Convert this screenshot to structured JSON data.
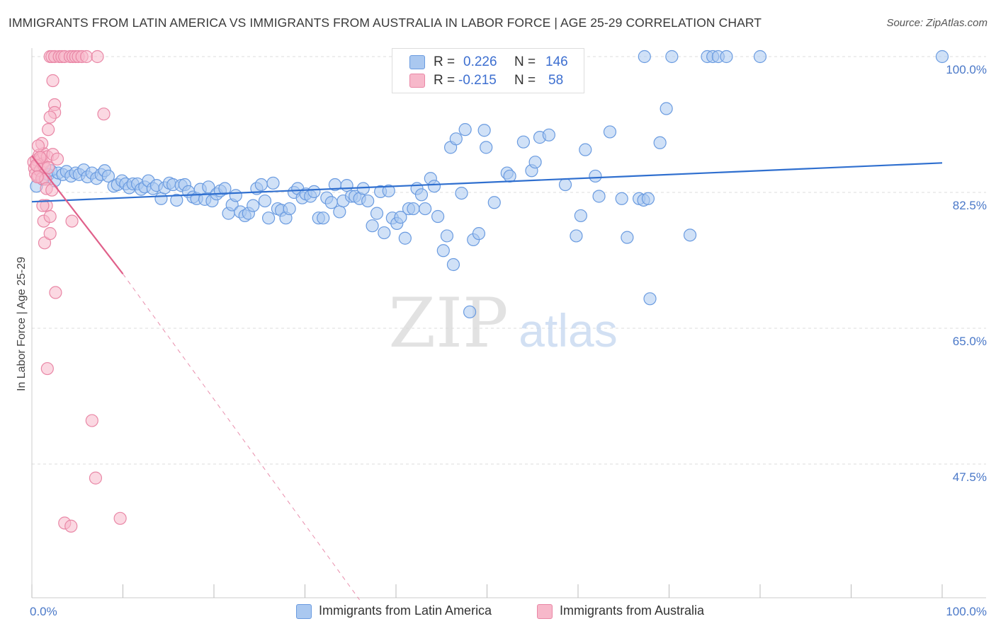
{
  "header": {
    "title": "IMMIGRANTS FROM LATIN AMERICA VS IMMIGRANTS FROM AUSTRALIA IN LABOR FORCE | AGE 25-29 CORRELATION CHART",
    "source": "Source: ZipAtlas.com"
  },
  "watermark": {
    "zip": "ZIP",
    "atlas": "atlas"
  },
  "legend": {
    "rows": [
      {
        "r_label": "R =",
        "r_value": "0.226",
        "n_label": "N =",
        "n_value": "146"
      },
      {
        "r_label": "R =",
        "r_value": "-0.215",
        "n_label": "N =",
        "n_value": "58"
      }
    ]
  },
  "colors": {
    "blue_fill": "#aac8f0",
    "blue_stroke": "#6a9be0",
    "blue_line": "#2f6fcf",
    "pink_fill": "#f7b8ca",
    "pink_stroke": "#e987a6",
    "pink_line": "#e0608a",
    "tick_text": "#4a78c8",
    "grid": "#dddddd"
  },
  "chart_data": {
    "type": "scatter",
    "title": "IMMIGRANTS FROM LATIN AMERICA VS IMMIGRANTS FROM AUSTRALIA IN LABOR FORCE | AGE 25-29 CORRELATION CHART",
    "xlabel": "",
    "ylabel": "In Labor Force | Age 25-29",
    "xlim": [
      0,
      100
    ],
    "ylim": [
      30,
      101.5
    ],
    "x_tick_labels": [
      "0.0%",
      "100.0%"
    ],
    "y_ticks": [
      {
        "value": 100.0,
        "label": "100.0%"
      },
      {
        "value": 82.5,
        "label": "82.5%"
      },
      {
        "value": 65.0,
        "label": "65.0%"
      },
      {
        "value": 47.5,
        "label": "47.5%"
      }
    ],
    "grid": true,
    "legend_position": "bottom",
    "series": [
      {
        "name": "Immigrants from Latin America",
        "R": 0.226,
        "N": 146,
        "trend": {
          "x0": 0,
          "y0": 81.3,
          "x1": 100,
          "y1": 86.3
        },
        "points": [
          [
            0.5,
            83.3
          ],
          [
            1.2,
            84.2
          ],
          [
            1.8,
            84.8
          ],
          [
            2.1,
            85.3
          ],
          [
            2.5,
            84.0
          ],
          [
            2.9,
            85.0
          ],
          [
            3.4,
            84.8
          ],
          [
            3.8,
            85.2
          ],
          [
            4.3,
            84.6
          ],
          [
            4.8,
            85.0
          ],
          [
            5.2,
            84.8
          ],
          [
            5.7,
            85.4
          ],
          [
            6.1,
            84.5
          ],
          [
            6.6,
            85.0
          ],
          [
            7.1,
            84.3
          ],
          [
            7.6,
            84.8
          ],
          [
            8.0,
            85.3
          ],
          [
            8.4,
            84.6
          ],
          [
            9.0,
            83.3
          ],
          [
            9.4,
            83.5
          ],
          [
            9.9,
            84.0
          ],
          [
            10.3,
            83.6
          ],
          [
            10.7,
            83.1
          ],
          [
            11.1,
            83.6
          ],
          [
            11.6,
            83.6
          ],
          [
            12.0,
            82.9
          ],
          [
            12.4,
            83.2
          ],
          [
            12.8,
            84.0
          ],
          [
            13.3,
            83.0
          ],
          [
            13.7,
            83.4
          ],
          [
            14.2,
            81.7
          ],
          [
            14.6,
            83.1
          ],
          [
            15.1,
            83.7
          ],
          [
            15.5,
            83.5
          ],
          [
            15.9,
            81.5
          ],
          [
            16.4,
            83.4
          ],
          [
            16.8,
            83.5
          ],
          [
            17.2,
            82.6
          ],
          [
            17.7,
            81.9
          ],
          [
            18.1,
            81.7
          ],
          [
            18.5,
            82.9
          ],
          [
            19.0,
            81.6
          ],
          [
            19.4,
            83.2
          ],
          [
            19.8,
            81.4
          ],
          [
            20.3,
            82.3
          ],
          [
            20.7,
            82.7
          ],
          [
            21.2,
            83.0
          ],
          [
            21.6,
            79.8
          ],
          [
            22.0,
            80.9
          ],
          [
            22.4,
            82.1
          ],
          [
            22.9,
            80.0
          ],
          [
            23.4,
            79.5
          ],
          [
            23.8,
            79.8
          ],
          [
            24.3,
            80.8
          ],
          [
            24.7,
            83.0
          ],
          [
            25.2,
            83.5
          ],
          [
            25.6,
            81.4
          ],
          [
            26.0,
            79.2
          ],
          [
            26.5,
            83.7
          ],
          [
            27.0,
            80.4
          ],
          [
            27.4,
            80.2
          ],
          [
            27.9,
            79.2
          ],
          [
            28.3,
            80.4
          ],
          [
            28.8,
            82.5
          ],
          [
            29.2,
            83.0
          ],
          [
            29.7,
            81.8
          ],
          [
            30.1,
            82.3
          ],
          [
            30.6,
            82.0
          ],
          [
            31.0,
            82.6
          ],
          [
            31.5,
            79.2
          ],
          [
            32.0,
            79.2
          ],
          [
            32.4,
            81.8
          ],
          [
            32.9,
            81.2
          ],
          [
            33.3,
            83.5
          ],
          [
            33.8,
            80.0
          ],
          [
            34.2,
            81.4
          ],
          [
            34.6,
            83.4
          ],
          [
            35.1,
            82.0
          ],
          [
            35.5,
            82.0
          ],
          [
            36.0,
            81.7
          ],
          [
            36.4,
            83.0
          ],
          [
            36.9,
            81.4
          ],
          [
            37.4,
            78.2
          ],
          [
            37.9,
            79.8
          ],
          [
            38.3,
            82.6
          ],
          [
            38.7,
            77.3
          ],
          [
            39.2,
            82.7
          ],
          [
            39.6,
            79.2
          ],
          [
            40.1,
            78.5
          ],
          [
            40.5,
            79.3
          ],
          [
            41.0,
            76.6
          ],
          [
            41.4,
            80.4
          ],
          [
            41.9,
            80.4
          ],
          [
            42.3,
            83.0
          ],
          [
            42.8,
            82.2
          ],
          [
            43.2,
            80.4
          ],
          [
            43.8,
            84.3
          ],
          [
            44.2,
            83.3
          ],
          [
            44.6,
            79.4
          ],
          [
            45.2,
            75.0
          ],
          [
            45.6,
            76.9
          ],
          [
            46.0,
            88.3
          ],
          [
            46.6,
            89.4
          ],
          [
            47.2,
            82.4
          ],
          [
            47.6,
            90.6
          ],
          [
            48.1,
            67.1
          ],
          [
            48.5,
            76.4
          ],
          [
            49.1,
            77.2
          ],
          [
            49.7,
            90.5
          ],
          [
            49.9,
            88.3
          ],
          [
            50.8,
            81.2
          ],
          [
            52.2,
            85.0
          ],
          [
            52.5,
            84.6
          ],
          [
            54.0,
            89.0
          ],
          [
            54.9,
            85.3
          ],
          [
            55.3,
            86.4
          ],
          [
            55.8,
            89.6
          ],
          [
            56.2,
            97.9
          ],
          [
            56.8,
            89.9
          ],
          [
            58.6,
            83.5
          ],
          [
            59.8,
            76.9
          ],
          [
            60.3,
            79.5
          ],
          [
            60.8,
            88.0
          ],
          [
            61.9,
            84.6
          ],
          [
            62.3,
            82.0
          ],
          [
            63.5,
            90.3
          ],
          [
            64.8,
            81.7
          ],
          [
            65.4,
            76.7
          ],
          [
            66.7,
            81.7
          ],
          [
            67.2,
            81.5
          ],
          [
            67.7,
            81.7
          ],
          [
            69.0,
            88.9
          ],
          [
            69.7,
            93.3
          ],
          [
            72.3,
            77.0
          ],
          [
            74.2,
            100.0
          ],
          [
            74.8,
            100.0
          ],
          [
            75.4,
            100.0
          ],
          [
            76.3,
            100.0
          ],
          [
            80.0,
            100.0
          ],
          [
            100.0,
            100.0
          ],
          [
            54.1,
            100.0
          ],
          [
            46.3,
            73.2
          ],
          [
            67.9,
            68.8
          ],
          [
            67.3,
            100.0
          ],
          [
            44.4,
            100.0
          ],
          [
            70.3,
            100.0
          ]
        ]
      },
      {
        "name": "Immigrants from Australia",
        "R": -0.215,
        "N": 58,
        "trend": {
          "x0": 0,
          "y0": 87.2,
          "x1": 10,
          "y1": 72.0,
          "dash_x1": 36,
          "dash_y1": 30.0
        },
        "points": [
          [
            0.2,
            86.4
          ],
          [
            0.3,
            85.6
          ],
          [
            0.4,
            84.9
          ],
          [
            0.5,
            86.7
          ],
          [
            0.6,
            85.9
          ],
          [
            0.7,
            84.6
          ],
          [
            0.8,
            87.3
          ],
          [
            0.9,
            85.3
          ],
          [
            1.0,
            86.8
          ],
          [
            1.1,
            84.3
          ],
          [
            1.2,
            86.2
          ],
          [
            1.3,
            87.5
          ],
          [
            1.4,
            85.8
          ],
          [
            1.5,
            84.2
          ],
          [
            1.6,
            83.0
          ],
          [
            1.7,
            87.1
          ],
          [
            1.8,
            85.7
          ],
          [
            0.5,
            86.0
          ],
          [
            0.6,
            84.5
          ],
          [
            0.9,
            87.0
          ],
          [
            1.1,
            88.8
          ],
          [
            0.7,
            88.5
          ],
          [
            1.3,
            78.8
          ],
          [
            1.4,
            76.0
          ],
          [
            1.6,
            80.8
          ],
          [
            2.0,
            79.4
          ],
          [
            2.0,
            77.2
          ],
          [
            2.2,
            82.8
          ],
          [
            2.3,
            87.4
          ],
          [
            2.5,
            93.8
          ],
          [
            2.5,
            92.8
          ],
          [
            2.8,
            86.8
          ],
          [
            1.2,
            80.8
          ],
          [
            2.6,
            69.6
          ],
          [
            2.0,
            92.2
          ],
          [
            1.8,
            90.6
          ],
          [
            2.3,
            96.9
          ],
          [
            2.0,
            100.0
          ],
          [
            2.2,
            100.0
          ],
          [
            2.5,
            100.0
          ],
          [
            3.0,
            100.0
          ],
          [
            3.3,
            100.0
          ],
          [
            3.6,
            100.0
          ],
          [
            4.2,
            100.0
          ],
          [
            4.5,
            100.0
          ],
          [
            4.8,
            100.0
          ],
          [
            5.1,
            100.0
          ],
          [
            5.5,
            100.0
          ],
          [
            6.0,
            100.0
          ],
          [
            7.2,
            100.0
          ],
          [
            7.9,
            92.6
          ],
          [
            4.4,
            78.8
          ],
          [
            1.7,
            59.8
          ],
          [
            6.6,
            53.1
          ],
          [
            7.0,
            45.7
          ],
          [
            3.6,
            39.9
          ],
          [
            4.3,
            39.5
          ],
          [
            9.7,
            40.5
          ]
        ]
      }
    ]
  },
  "bottom_legend": {
    "items": [
      {
        "label": "Immigrants from Latin America"
      },
      {
        "label": "Immigrants from Australia"
      }
    ]
  }
}
